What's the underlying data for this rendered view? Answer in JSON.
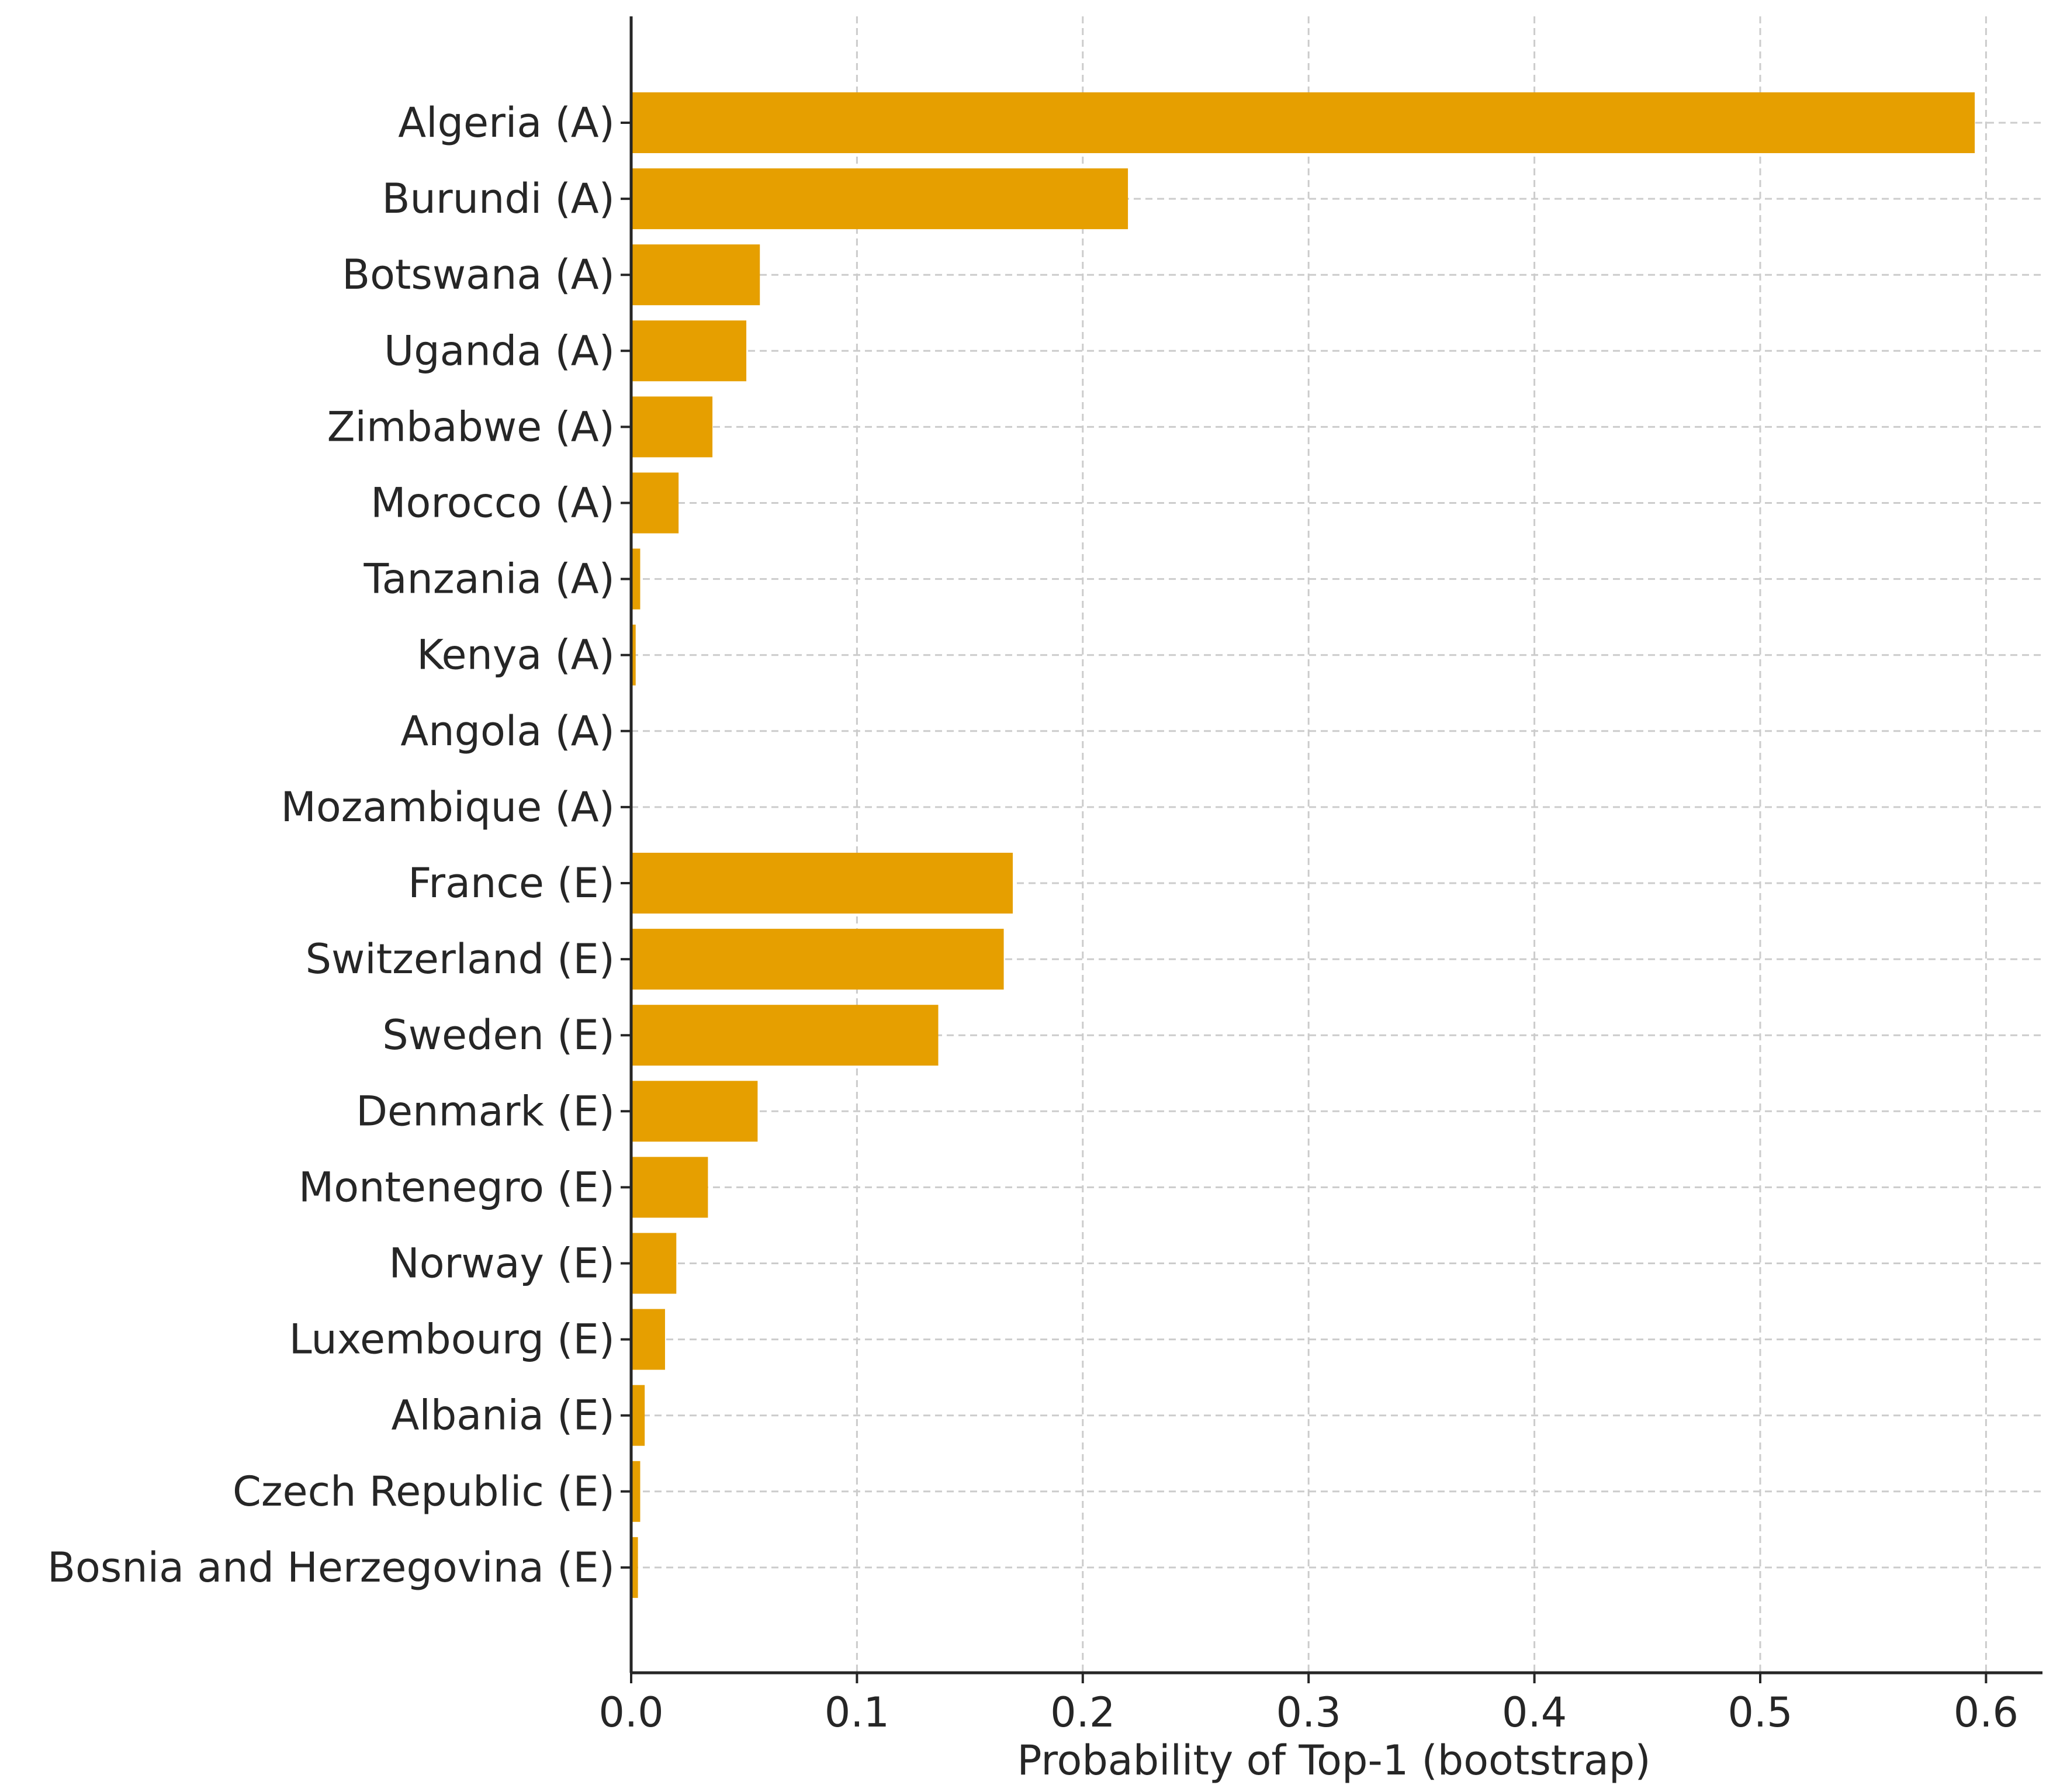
{
  "chart_data": {
    "type": "bar",
    "orientation": "horizontal",
    "title": "",
    "xlabel": "Probability of Top-1 (bootstrap)",
    "ylabel": "",
    "xlim": [
      0,
      0.625
    ],
    "xticks": [
      0.0,
      0.1,
      0.2,
      0.3,
      0.4,
      0.5,
      0.6
    ],
    "xtick_labels": [
      "0.0",
      "0.1",
      "0.2",
      "0.3",
      "0.4",
      "0.5",
      "0.6"
    ],
    "grid": true,
    "bar_color": "#E69F00",
    "categories": [
      "Algeria (A)",
      "Burundi (A)",
      "Botswana (A)",
      "Uganda (A)",
      "Zimbabwe (A)",
      "Morocco (A)",
      "Tanzania (A)",
      "Kenya (A)",
      "Angola (A)",
      "Mozambique (A)",
      "France (E)",
      "Switzerland (E)",
      "Sweden (E)",
      "Denmark (E)",
      "Montenegro (E)",
      "Norway (E)",
      "Luxembourg (E)",
      "Albania (E)",
      "Czech Republic (E)",
      "Bosnia and Herzegovina (E)"
    ],
    "values": [
      0.595,
      0.22,
      0.057,
      0.051,
      0.036,
      0.021,
      0.004,
      0.002,
      0.0,
      0.0,
      0.169,
      0.165,
      0.136,
      0.056,
      0.034,
      0.02,
      0.015,
      0.006,
      0.004,
      0.003
    ]
  }
}
